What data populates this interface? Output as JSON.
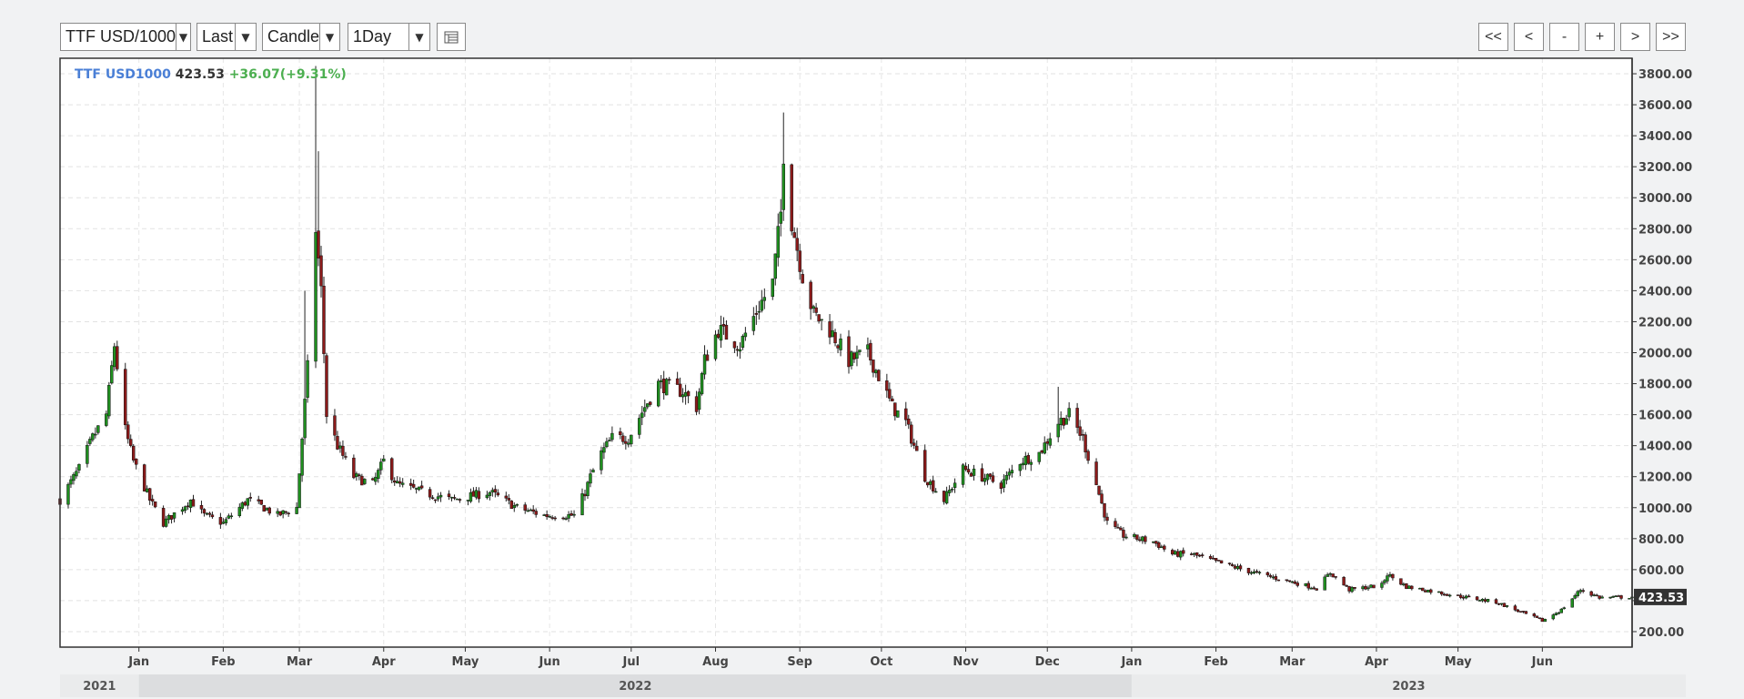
{
  "toolbar": {
    "symbol_select": "TTF USD/1000",
    "price_select": "Last",
    "chart_type_select": "Candle",
    "interval_select": "1Day",
    "nav_buttons": [
      "<<",
      "<",
      "-",
      "+",
      ">",
      ">>"
    ]
  },
  "legend": {
    "symbol": "TTF USD1000",
    "last": "423.53",
    "change": "+36.07(+9.31%)"
  },
  "price_tag": "423.53",
  "colors": {
    "up": "#1f8f1f",
    "down": "#8b1a1a",
    "symbol": "#4a7fd6",
    "change": "#4caf50"
  },
  "chart_data": {
    "type": "candlestick",
    "title": "",
    "ylim": [
      100,
      3900
    ],
    "y_ticks": [
      "3800.00",
      "3600.00",
      "3400.00",
      "3200.00",
      "3000.00",
      "2800.00",
      "2600.00",
      "2400.00",
      "2200.00",
      "2000.00",
      "1800.00",
      "1600.00",
      "1400.00",
      "1200.00",
      "1000.00",
      "800.00",
      "600.00",
      "200.00"
    ],
    "y_tick_values": [
      3800,
      3600,
      3400,
      3200,
      3000,
      2800,
      2600,
      2400,
      2200,
      2000,
      1800,
      1600,
      1400,
      1200,
      1000,
      800,
      600,
      200
    ],
    "month_labels": [
      "Jan",
      "Feb",
      "Mar",
      "Apr",
      "May",
      "Jun",
      "Jul",
      "Aug",
      "Sep",
      "Oct",
      "Nov",
      "Dec",
      "Jan",
      "Feb",
      "Mar",
      "Apr",
      "May",
      "Jun"
    ],
    "month_dates": [
      "2022-01-01",
      "2022-02-01",
      "2022-03-01",
      "2022-04-01",
      "2022-05-01",
      "2022-06-01",
      "2022-07-01",
      "2022-08-01",
      "2022-09-01",
      "2022-10-01",
      "2022-11-01",
      "2022-12-01",
      "2023-01-01",
      "2023-02-01",
      "2023-03-01",
      "2023-04-01",
      "2023-05-01",
      "2023-06-01"
    ],
    "year_labels": [
      "2021",
      "2022",
      "2023"
    ],
    "x_range": [
      "2021-12-03",
      "2023-07-04"
    ],
    "grid": true,
    "series": [
      {
        "date": "2021-12-03",
        "close": 1050
      },
      {
        "date": "2021-12-10",
        "close": 1250
      },
      {
        "date": "2021-12-15",
        "close": 1450
      },
      {
        "date": "2021-12-20",
        "close": 1600
      },
      {
        "date": "2021-12-23",
        "close": 2050
      },
      {
        "date": "2021-12-27",
        "close": 1500
      },
      {
        "date": "2021-12-30",
        "close": 1300
      },
      {
        "date": "2022-01-05",
        "close": 1050
      },
      {
        "date": "2022-01-10",
        "close": 900
      },
      {
        "date": "2022-01-20",
        "close": 1050
      },
      {
        "date": "2022-01-25",
        "close": 950
      },
      {
        "date": "2022-02-01",
        "close": 900
      },
      {
        "date": "2022-02-10",
        "close": 1050
      },
      {
        "date": "2022-02-16",
        "close": 1000
      },
      {
        "date": "2022-02-21",
        "close": 950
      },
      {
        "date": "2022-02-28",
        "close": 1000
      },
      {
        "date": "2022-03-02",
        "close": 1450
      },
      {
        "date": "2022-03-04",
        "close": 1900
      },
      {
        "date": "2022-03-07",
        "close": 2800
      },
      {
        "date": "2022-03-09",
        "close": 2400
      },
      {
        "date": "2022-03-11",
        "close": 1600
      },
      {
        "date": "2022-03-15",
        "close": 1400
      },
      {
        "date": "2022-03-21",
        "close": 1200
      },
      {
        "date": "2022-03-28",
        "close": 1150
      },
      {
        "date": "2022-04-01",
        "close": 1300
      },
      {
        "date": "2022-04-06",
        "close": 1150
      },
      {
        "date": "2022-04-15",
        "close": 1100
      },
      {
        "date": "2022-04-26",
        "close": 1050
      },
      {
        "date": "2022-05-10",
        "close": 1100
      },
      {
        "date": "2022-05-20",
        "close": 1000
      },
      {
        "date": "2022-05-30",
        "close": 950
      },
      {
        "date": "2022-06-10",
        "close": 950
      },
      {
        "date": "2022-06-14",
        "close": 1100
      },
      {
        "date": "2022-06-16",
        "close": 1200
      },
      {
        "date": "2022-06-20",
        "close": 1350
      },
      {
        "date": "2022-06-24",
        "close": 1450
      },
      {
        "date": "2022-06-30",
        "close": 1450
      },
      {
        "date": "2022-07-06",
        "close": 1650
      },
      {
        "date": "2022-07-11",
        "close": 1800
      },
      {
        "date": "2022-07-20",
        "close": 1750
      },
      {
        "date": "2022-07-25",
        "close": 1650
      },
      {
        "date": "2022-07-28",
        "close": 1950
      },
      {
        "date": "2022-08-02",
        "close": 2150
      },
      {
        "date": "2022-08-10",
        "close": 2050
      },
      {
        "date": "2022-08-17",
        "close": 2300
      },
      {
        "date": "2022-08-22",
        "close": 2450
      },
      {
        "date": "2022-08-25",
        "close": 2900
      },
      {
        "date": "2022-08-26",
        "close": 3300
      },
      {
        "date": "2022-08-29",
        "close": 2850
      },
      {
        "date": "2022-09-02",
        "close": 2500
      },
      {
        "date": "2022-09-06",
        "close": 2250
      },
      {
        "date": "2022-09-12",
        "close": 2150
      },
      {
        "date": "2022-09-19",
        "close": 1950
      },
      {
        "date": "2022-09-26",
        "close": 2000
      },
      {
        "date": "2022-09-30",
        "close": 1850
      },
      {
        "date": "2022-10-05",
        "close": 1650
      },
      {
        "date": "2022-10-10",
        "close": 1550
      },
      {
        "date": "2022-10-17",
        "close": 1200
      },
      {
        "date": "2022-10-24",
        "close": 1050
      },
      {
        "date": "2022-10-31",
        "close": 1250
      },
      {
        "date": "2022-11-07",
        "close": 1200
      },
      {
        "date": "2022-11-14",
        "close": 1150
      },
      {
        "date": "2022-11-21",
        "close": 1300
      },
      {
        "date": "2022-11-28",
        "close": 1350
      },
      {
        "date": "2022-12-05",
        "close": 1550
      },
      {
        "date": "2022-12-09",
        "close": 1600
      },
      {
        "date": "2022-12-14",
        "close": 1450
      },
      {
        "date": "2022-12-19",
        "close": 1150
      },
      {
        "date": "2022-12-23",
        "close": 900
      },
      {
        "date": "2022-12-29",
        "close": 820
      },
      {
        "date": "2023-01-09",
        "close": 780
      },
      {
        "date": "2023-01-16",
        "close": 700
      },
      {
        "date": "2023-01-23",
        "close": 700
      },
      {
        "date": "2023-02-01",
        "close": 650
      },
      {
        "date": "2023-02-15",
        "close": 580
      },
      {
        "date": "2023-03-01",
        "close": 520
      },
      {
        "date": "2023-03-10",
        "close": 480
      },
      {
        "date": "2023-03-15",
        "close": 580
      },
      {
        "date": "2023-03-22",
        "close": 470
      },
      {
        "date": "2023-04-03",
        "close": 500
      },
      {
        "date": "2023-04-05",
        "close": 570
      },
      {
        "date": "2023-04-12",
        "close": 490
      },
      {
        "date": "2023-05-01",
        "close": 430
      },
      {
        "date": "2023-05-15",
        "close": 390
      },
      {
        "date": "2023-06-01",
        "close": 270
      },
      {
        "date": "2023-06-08",
        "close": 340
      },
      {
        "date": "2023-06-15",
        "close": 470
      },
      {
        "date": "2023-06-22",
        "close": 420
      },
      {
        "date": "2023-07-04",
        "close": 424
      }
    ]
  }
}
